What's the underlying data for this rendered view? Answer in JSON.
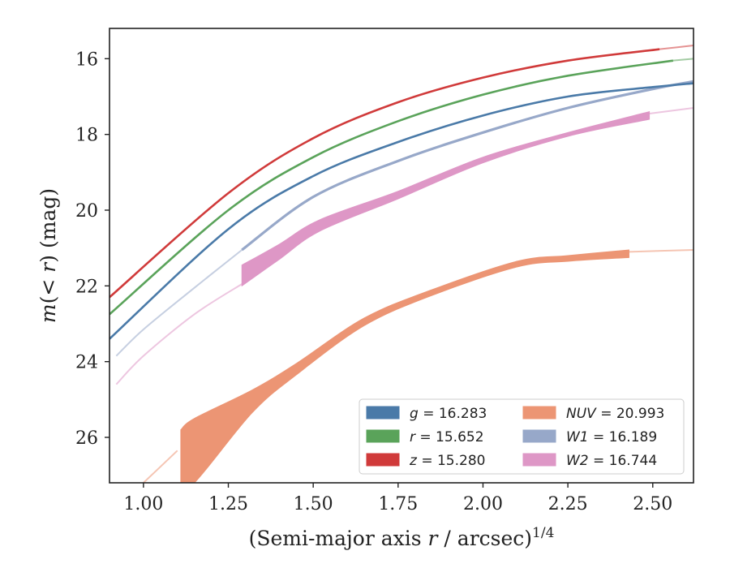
{
  "chart_data": {
    "type": "line",
    "xlabel": "(Semi-major axis r / arcsec)^1/4",
    "ylabel": "m(< r) (mag)",
    "xlim": [
      0.9,
      2.62
    ],
    "ylim": [
      27.2,
      15.2
    ],
    "y_inverted": true,
    "grid": false,
    "legend_position": "lower right",
    "x_ticks": [
      "1.00",
      "1.25",
      "1.50",
      "1.75",
      "2.00",
      "2.25",
      "2.50"
    ],
    "y_ticks": [
      "16",
      "18",
      "20",
      "22",
      "24",
      "26"
    ],
    "series": [
      {
        "name": "g",
        "value": "16.283",
        "color": "#4a7aa8",
        "faint_points": [
          [
            0.9,
            23.4
          ],
          [
            1.25,
            20.5
          ],
          [
            1.5,
            19.1
          ],
          [
            1.75,
            18.2
          ],
          [
            2.0,
            17.5
          ],
          [
            2.25,
            17.0
          ],
          [
            2.5,
            16.75
          ],
          [
            2.62,
            16.65
          ]
        ],
        "bold_points": [
          [
            0.9,
            23.4
          ],
          [
            1.25,
            20.5
          ],
          [
            1.5,
            19.1
          ],
          [
            1.75,
            18.2
          ],
          [
            2.0,
            17.5
          ],
          [
            2.25,
            17.0
          ],
          [
            2.5,
            16.75
          ],
          [
            2.62,
            16.65
          ]
        ],
        "band_width": 0.06
      },
      {
        "name": "r",
        "value": "15.652",
        "color": "#5aa35a",
        "faint_points": [
          [
            2.56,
            16.05
          ],
          [
            2.62,
            16.0
          ]
        ],
        "bold_points": [
          [
            0.9,
            22.75
          ],
          [
            1.25,
            20.0
          ],
          [
            1.5,
            18.6
          ],
          [
            1.75,
            17.65
          ],
          [
            2.0,
            16.95
          ],
          [
            2.25,
            16.45
          ],
          [
            2.56,
            16.05
          ]
        ],
        "band_width": 0.06
      },
      {
        "name": "z",
        "value": "15.280",
        "color": "#d03a3a",
        "faint_points": [
          [
            2.52,
            15.75
          ],
          [
            2.62,
            15.65
          ]
        ],
        "bold_points": [
          [
            0.9,
            22.3
          ],
          [
            1.25,
            19.55
          ],
          [
            1.5,
            18.1
          ],
          [
            1.75,
            17.15
          ],
          [
            2.0,
            16.5
          ],
          [
            2.25,
            16.05
          ],
          [
            2.52,
            15.75
          ]
        ],
        "band_width": 0.06
      },
      {
        "name": "NUV",
        "value": "20.993",
        "color": "#ec9574",
        "faint_points": [
          [
            1.0,
            27.2
          ],
          [
            1.1,
            26.35
          ],
          [
            2.43,
            21.1
          ],
          [
            2.62,
            21.05
          ]
        ],
        "band_points": [
          [
            1.11,
            25.8,
            27.2
          ],
          [
            1.15,
            25.5,
            27.2
          ],
          [
            1.32,
            24.75,
            25.35
          ],
          [
            1.45,
            24.05,
            24.35
          ],
          [
            1.65,
            22.85,
            23.05
          ],
          [
            1.85,
            22.1,
            22.25
          ],
          [
            2.1,
            21.35,
            21.5
          ],
          [
            2.25,
            21.2,
            21.35
          ],
          [
            2.43,
            21.05,
            21.25
          ]
        ]
      },
      {
        "name": "W1",
        "value": "16.189",
        "color": "#97a8c9",
        "faint_points": [
          [
            0.92,
            23.85
          ],
          [
            1.0,
            23.15
          ],
          [
            1.15,
            22.05
          ],
          [
            1.29,
            21.05
          ]
        ],
        "bold_points": [
          [
            1.29,
            21.05
          ],
          [
            1.5,
            19.65
          ],
          [
            1.75,
            18.7
          ],
          [
            2.0,
            17.95
          ],
          [
            2.25,
            17.3
          ],
          [
            2.5,
            16.8
          ],
          [
            2.62,
            16.6
          ]
        ],
        "band_width": 0.1
      },
      {
        "name": "W2",
        "value": "16.744",
        "color": "#de97c6",
        "faint_points": [
          [
            0.92,
            24.6
          ],
          [
            1.0,
            23.85
          ],
          [
            1.15,
            22.75
          ],
          [
            1.29,
            21.95
          ],
          [
            2.49,
            17.45
          ],
          [
            2.62,
            17.3
          ]
        ],
        "band_points": [
          [
            1.29,
            21.45,
            22.0
          ],
          [
            1.4,
            20.9,
            21.3
          ],
          [
            1.52,
            20.25,
            20.55
          ],
          [
            1.75,
            19.5,
            19.7
          ],
          [
            2.0,
            18.6,
            18.75
          ],
          [
            2.25,
            17.95,
            18.05
          ],
          [
            2.49,
            17.4,
            17.6
          ]
        ]
      }
    ]
  },
  "legend": {
    "entries": [
      {
        "label": "g = 16.283",
        "color": "#4a7aa8"
      },
      {
        "label": "NUV = 20.993",
        "color": "#ec9574"
      },
      {
        "label": "r = 15.652",
        "color": "#5aa35a"
      },
      {
        "label": "W1 = 16.189",
        "color": "#97a8c9"
      },
      {
        "label": "z = 15.280",
        "color": "#d03a3a"
      },
      {
        "label": "W2 = 16.744",
        "color": "#de97c6"
      }
    ]
  }
}
